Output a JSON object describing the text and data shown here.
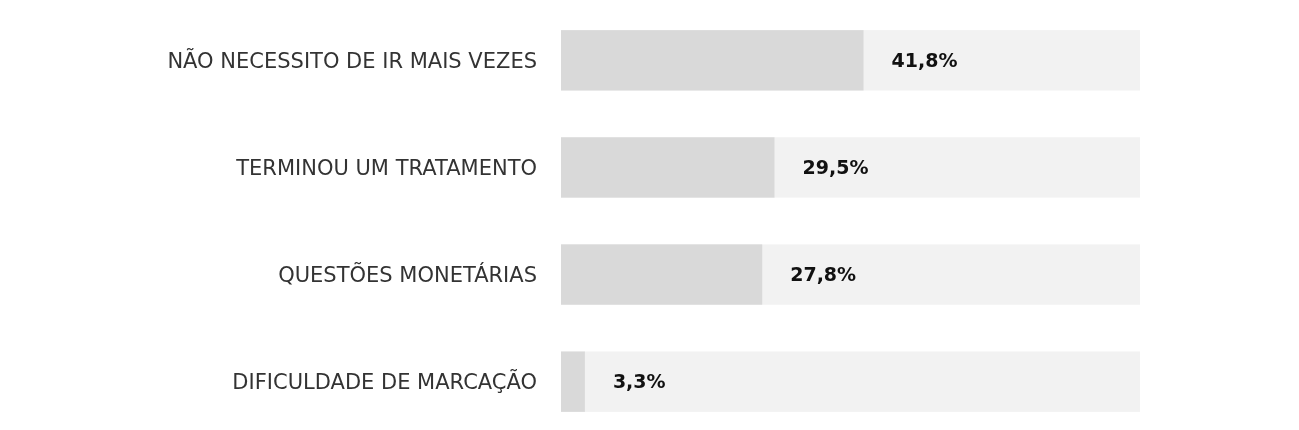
{
  "chart_data": {
    "type": "bar",
    "orientation": "horizontal",
    "categories": [
      "NÃO NECESSITO DE IR MAIS VEZES",
      "TERMINOU UM TRATAMENTO",
      "QUESTÕES MONETÁRIAS",
      "DIFICULDADE DE MARCAÇÃO"
    ],
    "values": [
      41.8,
      29.5,
      27.8,
      3.3
    ],
    "value_labels": [
      "41,8%",
      "29,5%",
      "27,8%",
      "3,3%"
    ],
    "color": "#d9d9d9",
    "xlim": [
      0,
      80
    ],
    "tick_labels": "y"
  }
}
